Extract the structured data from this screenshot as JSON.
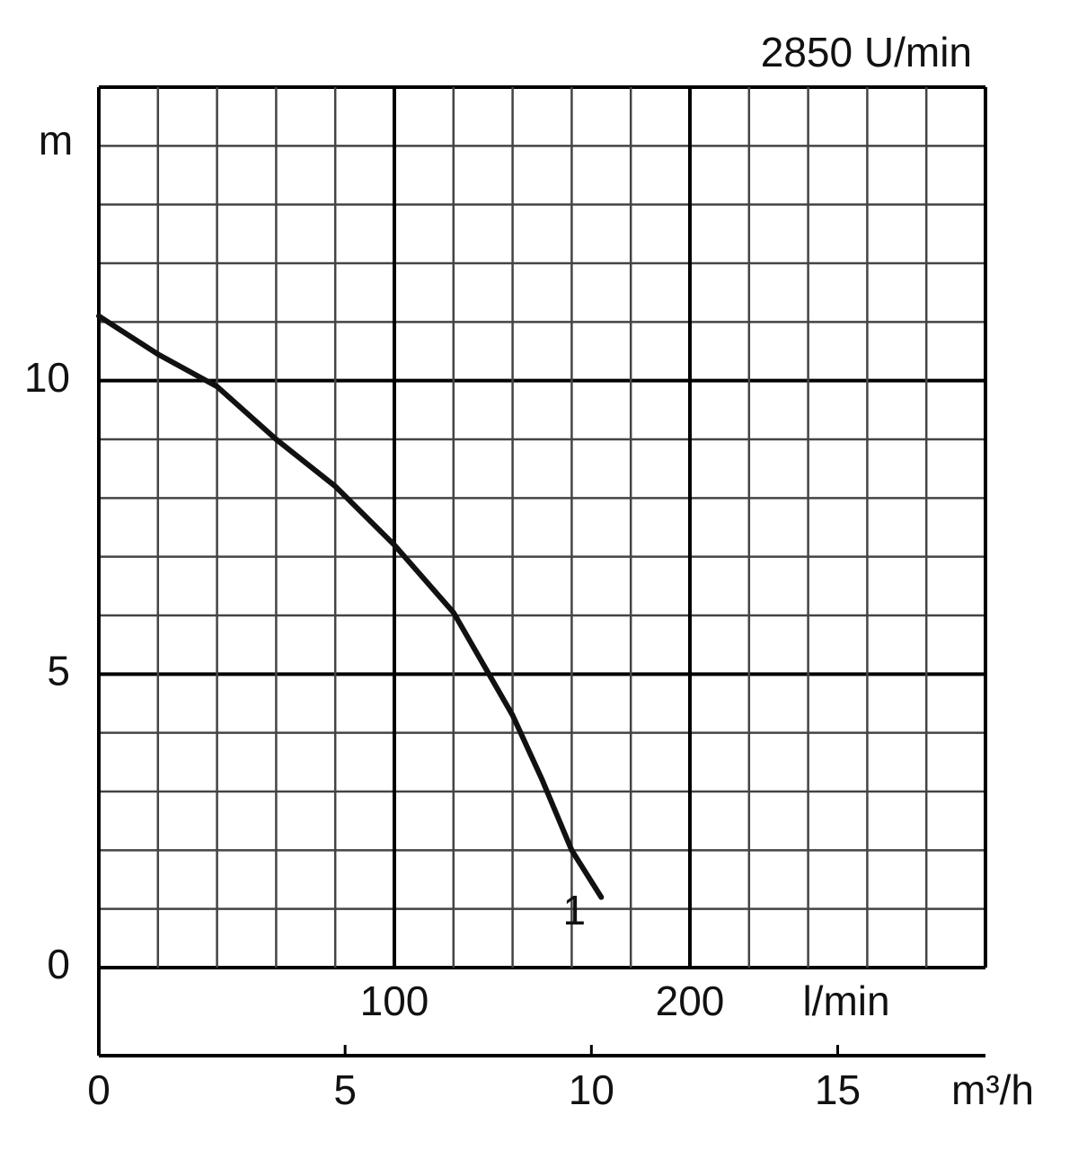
{
  "chart_data": {
    "type": "line",
    "title": "2850 U/min",
    "y_label": "m",
    "x_label": "l/min",
    "x2_label": "m³/h",
    "xlim": [
      0,
      300
    ],
    "xticks": [
      100,
      200
    ],
    "xgrid": [
      0,
      20,
      40,
      60,
      80,
      100,
      120,
      140,
      160,
      180,
      200,
      220,
      240,
      260,
      280,
      300
    ],
    "x2lim": [
      0,
      18
    ],
    "x2ticks": [
      0,
      5,
      10,
      15
    ],
    "ylim": [
      0,
      15
    ],
    "yticks": [
      0,
      5,
      10
    ],
    "ygrid": [
      0,
      1,
      2,
      3,
      4,
      5,
      6,
      7,
      8,
      9,
      10,
      11,
      12,
      13,
      14,
      15
    ],
    "grid": true,
    "series": [
      {
        "name": "1",
        "color": "#111111",
        "x": [
          0,
          20,
          40,
          60,
          80,
          100,
          120,
          140,
          150,
          160,
          170
        ],
        "values": [
          11.1,
          10.45,
          9.9,
          9.0,
          8.2,
          7.2,
          6.05,
          4.3,
          3.2,
          2.0,
          1.2
        ]
      }
    ]
  }
}
